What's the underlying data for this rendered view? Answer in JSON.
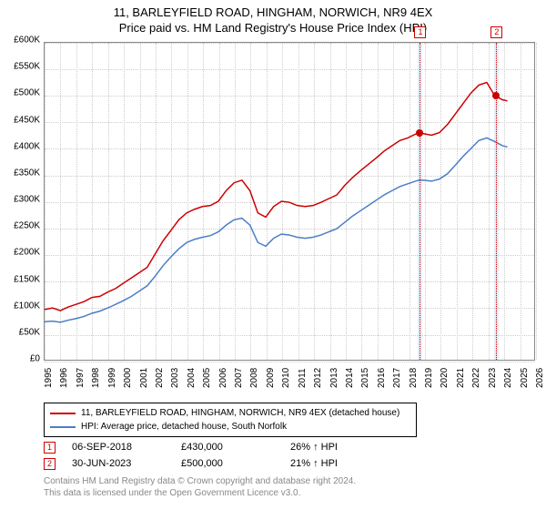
{
  "title_line1": "11, BARLEYFIELD ROAD, HINGHAM, NORWICH, NR9 4EX",
  "title_line2": "Price paid vs. HM Land Registry's House Price Index (HPI)",
  "chart": {
    "type": "line",
    "background_color": "#ffffff",
    "grid_color": "#cccccc",
    "border_color": "#888888",
    "x_min": 1995,
    "x_max": 2026,
    "y_min": 0,
    "y_max": 600000,
    "y_ticks": [
      0,
      50000,
      100000,
      150000,
      200000,
      250000,
      300000,
      350000,
      400000,
      450000,
      500000,
      550000,
      600000
    ],
    "y_labels": [
      "£0",
      "£50K",
      "£100K",
      "£150K",
      "£200K",
      "£250K",
      "£300K",
      "£350K",
      "£400K",
      "£450K",
      "£500K",
      "£550K",
      "£600K"
    ],
    "x_ticks": [
      1995,
      1996,
      1997,
      1998,
      1999,
      2000,
      2001,
      2002,
      2003,
      2004,
      2005,
      2006,
      2007,
      2008,
      2009,
      2010,
      2011,
      2012,
      2013,
      2014,
      2015,
      2016,
      2017,
      2018,
      2019,
      2020,
      2021,
      2022,
      2023,
      2024,
      2025,
      2026
    ],
    "line_width": 1.5,
    "series_red": {
      "color": "#cc0000",
      "label": "11, BARLEYFIELD ROAD, HINGHAM, NORWICH, NR9 4EX (detached house)",
      "data": [
        [
          1995,
          95000
        ],
        [
          1995.5,
          98000
        ],
        [
          1996,
          93000
        ],
        [
          1996.5,
          100000
        ],
        [
          1997,
          105000
        ],
        [
          1997.5,
          110000
        ],
        [
          1998,
          118000
        ],
        [
          1998.5,
          120000
        ],
        [
          1999,
          128000
        ],
        [
          1999.5,
          135000
        ],
        [
          2000,
          145000
        ],
        [
          2000.5,
          155000
        ],
        [
          2001,
          165000
        ],
        [
          2001.5,
          175000
        ],
        [
          2002,
          200000
        ],
        [
          2002.5,
          225000
        ],
        [
          2003,
          245000
        ],
        [
          2003.5,
          265000
        ],
        [
          2004,
          278000
        ],
        [
          2004.5,
          285000
        ],
        [
          2005,
          290000
        ],
        [
          2005.5,
          292000
        ],
        [
          2006,
          300000
        ],
        [
          2006.5,
          320000
        ],
        [
          2007,
          335000
        ],
        [
          2007.5,
          340000
        ],
        [
          2008,
          320000
        ],
        [
          2008.5,
          278000
        ],
        [
          2009,
          270000
        ],
        [
          2009.5,
          290000
        ],
        [
          2010,
          300000
        ],
        [
          2010.5,
          298000
        ],
        [
          2011,
          292000
        ],
        [
          2011.5,
          290000
        ],
        [
          2012,
          292000
        ],
        [
          2012.5,
          298000
        ],
        [
          2013,
          305000
        ],
        [
          2013.5,
          312000
        ],
        [
          2014,
          330000
        ],
        [
          2014.5,
          345000
        ],
        [
          2015,
          358000
        ],
        [
          2015.5,
          370000
        ],
        [
          2016,
          382000
        ],
        [
          2016.5,
          395000
        ],
        [
          2017,
          405000
        ],
        [
          2017.5,
          415000
        ],
        [
          2018,
          420000
        ],
        [
          2018.68,
          430000
        ],
        [
          2019,
          428000
        ],
        [
          2019.5,
          425000
        ],
        [
          2020,
          430000
        ],
        [
          2020.5,
          445000
        ],
        [
          2021,
          465000
        ],
        [
          2021.5,
          485000
        ],
        [
          2022,
          505000
        ],
        [
          2022.5,
          520000
        ],
        [
          2023,
          525000
        ],
        [
          2023.5,
          500000
        ],
        [
          2024,
          492000
        ],
        [
          2024.3,
          490000
        ]
      ]
    },
    "series_blue": {
      "color": "#4a7ec7",
      "label": "HPI: Average price, detached house, South Norfolk",
      "data": [
        [
          1995,
          72000
        ],
        [
          1995.5,
          73000
        ],
        [
          1996,
          71000
        ],
        [
          1996.5,
          75000
        ],
        [
          1997,
          78000
        ],
        [
          1997.5,
          82000
        ],
        [
          1998,
          88000
        ],
        [
          1998.5,
          92000
        ],
        [
          1999,
          98000
        ],
        [
          1999.5,
          105000
        ],
        [
          2000,
          112000
        ],
        [
          2000.5,
          120000
        ],
        [
          2001,
          130000
        ],
        [
          2001.5,
          140000
        ],
        [
          2002,
          158000
        ],
        [
          2002.5,
          178000
        ],
        [
          2003,
          195000
        ],
        [
          2003.5,
          210000
        ],
        [
          2004,
          222000
        ],
        [
          2004.5,
          228000
        ],
        [
          2005,
          232000
        ],
        [
          2005.5,
          235000
        ],
        [
          2006,
          242000
        ],
        [
          2006.5,
          255000
        ],
        [
          2007,
          265000
        ],
        [
          2007.5,
          268000
        ],
        [
          2008,
          255000
        ],
        [
          2008.5,
          222000
        ],
        [
          2009,
          215000
        ],
        [
          2009.5,
          230000
        ],
        [
          2010,
          238000
        ],
        [
          2010.5,
          236000
        ],
        [
          2011,
          232000
        ],
        [
          2011.5,
          230000
        ],
        [
          2012,
          232000
        ],
        [
          2012.5,
          236000
        ],
        [
          2013,
          242000
        ],
        [
          2013.5,
          248000
        ],
        [
          2014,
          260000
        ],
        [
          2014.5,
          272000
        ],
        [
          2015,
          282000
        ],
        [
          2015.5,
          292000
        ],
        [
          2016,
          302000
        ],
        [
          2016.5,
          312000
        ],
        [
          2017,
          320000
        ],
        [
          2017.5,
          328000
        ],
        [
          2018,
          333000
        ],
        [
          2018.68,
          340000
        ],
        [
          2019,
          340000
        ],
        [
          2019.5,
          338000
        ],
        [
          2020,
          342000
        ],
        [
          2020.5,
          352000
        ],
        [
          2021,
          368000
        ],
        [
          2021.5,
          385000
        ],
        [
          2022,
          400000
        ],
        [
          2022.5,
          415000
        ],
        [
          2023,
          420000
        ],
        [
          2023.5,
          413000
        ],
        [
          2024,
          405000
        ],
        [
          2024.3,
          403000
        ]
      ]
    },
    "shaded_bands": [
      {
        "x_start": 2018.55,
        "x_end": 2018.8,
        "color": "#e6edf7"
      },
      {
        "x_start": 2023.35,
        "x_end": 2023.65,
        "color": "#e6edf7"
      }
    ],
    "sale_markers": [
      {
        "n": "1",
        "x": 2018.68,
        "y": 430000,
        "dot_color": "#cc0000",
        "box_color": "#cc0000"
      },
      {
        "n": "2",
        "x": 2023.5,
        "y": 500000,
        "dot_color": "#cc0000",
        "box_color": "#cc0000"
      }
    ]
  },
  "legend": {
    "row1_color": "#cc0000",
    "row1_text": "11, BARLEYFIELD ROAD, HINGHAM, NORWICH, NR9 4EX (detached house)",
    "row2_color": "#4a7ec7",
    "row2_text": "HPI: Average price, detached house, South Norfolk"
  },
  "sales": [
    {
      "n": "1",
      "date": "06-SEP-2018",
      "price": "£430,000",
      "delta": "26% ↑ HPI"
    },
    {
      "n": "2",
      "date": "30-JUN-2023",
      "price": "£500,000",
      "delta": "21% ↑ HPI"
    }
  ],
  "footer_line1": "Contains HM Land Registry data © Crown copyright and database right 2024.",
  "footer_line2": "This data is licensed under the Open Government Licence v3.0."
}
